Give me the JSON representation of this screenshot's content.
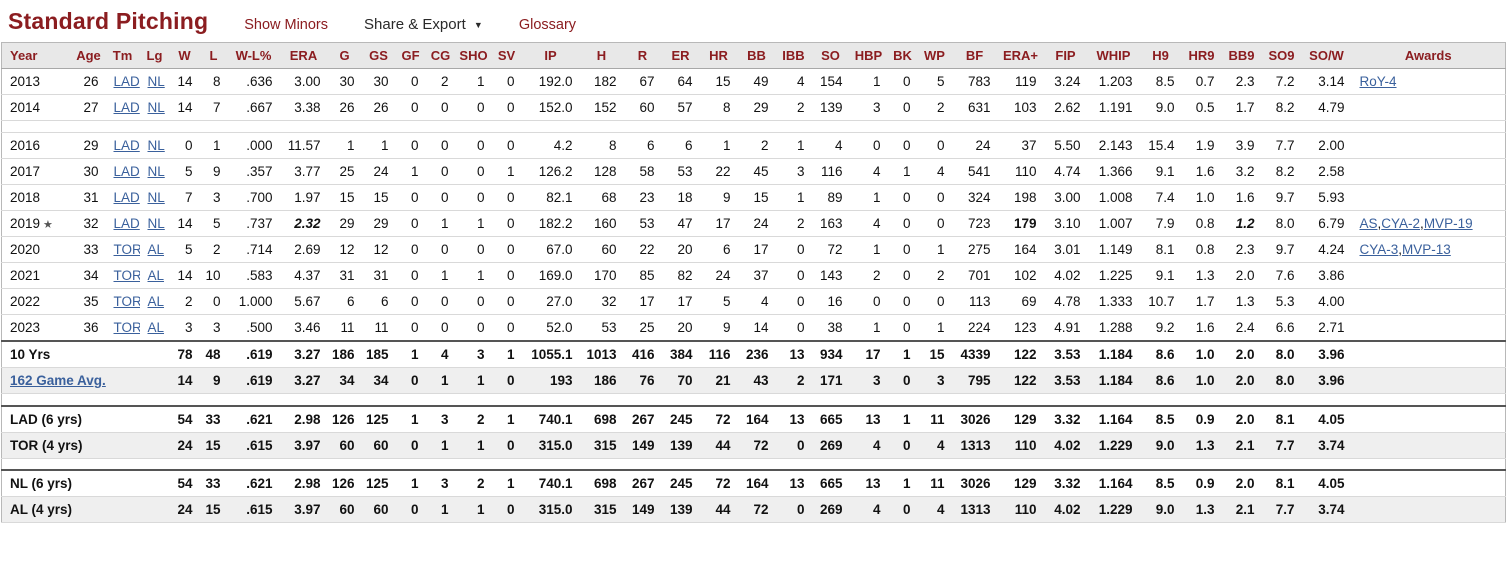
{
  "colors": {
    "title": "#8b1d20",
    "header_text": "#8b1d20",
    "link": "#3a609c",
    "toolbar_link": "#8b1d20",
    "header_bg": "#e8e8e8",
    "shaded_row_bg": "#efefef",
    "row_border": "#d9d9d9",
    "section_border": "#555555",
    "table_border": "#b8b8b8"
  },
  "page": {
    "title": "Standard Pitching",
    "toolbar": {
      "show_minors": "Show Minors",
      "share_export": "Share & Export",
      "dropdown_arrow": "▼",
      "glossary": "Glossary"
    }
  },
  "table": {
    "columns": [
      {
        "key": "year",
        "label": "Year"
      },
      {
        "key": "age",
        "label": "Age"
      },
      {
        "key": "tm",
        "label": "Tm"
      },
      {
        "key": "lg",
        "label": "Lg"
      },
      {
        "key": "w",
        "label": "W"
      },
      {
        "key": "l",
        "label": "L"
      },
      {
        "key": "wl_pct",
        "label": "W-L%"
      },
      {
        "key": "era",
        "label": "ERA"
      },
      {
        "key": "g",
        "label": "G"
      },
      {
        "key": "gs",
        "label": "GS"
      },
      {
        "key": "gf",
        "label": "GF"
      },
      {
        "key": "cg",
        "label": "CG"
      },
      {
        "key": "sho",
        "label": "SHO"
      },
      {
        "key": "sv",
        "label": "SV"
      },
      {
        "key": "ip",
        "label": "IP"
      },
      {
        "key": "h",
        "label": "H"
      },
      {
        "key": "r",
        "label": "R"
      },
      {
        "key": "er",
        "label": "ER"
      },
      {
        "key": "hr",
        "label": "HR"
      },
      {
        "key": "bb",
        "label": "BB"
      },
      {
        "key": "ibb",
        "label": "IBB"
      },
      {
        "key": "so",
        "label": "SO"
      },
      {
        "key": "hbp",
        "label": "HBP"
      },
      {
        "key": "bk",
        "label": "BK"
      },
      {
        "key": "wp",
        "label": "WP"
      },
      {
        "key": "bf",
        "label": "BF"
      },
      {
        "key": "era_plus",
        "label": "ERA+"
      },
      {
        "key": "fip",
        "label": "FIP"
      },
      {
        "key": "whip",
        "label": "WHIP"
      },
      {
        "key": "h9",
        "label": "H9"
      },
      {
        "key": "hr9",
        "label": "HR9"
      },
      {
        "key": "bb9",
        "label": "BB9"
      },
      {
        "key": "so9",
        "label": "SO9"
      },
      {
        "key": "so_w",
        "label": "SO/W"
      },
      {
        "key": "awards",
        "label": "Awards"
      }
    ],
    "stat_keys": [
      "w",
      "l",
      "wl_pct",
      "era",
      "g",
      "gs",
      "gf",
      "cg",
      "sho",
      "sv",
      "ip",
      "h",
      "r",
      "er",
      "hr",
      "bb",
      "ibb",
      "so",
      "hbp",
      "bk",
      "wp",
      "bf",
      "era_plus",
      "fip",
      "whip",
      "h9",
      "hr9",
      "bb9",
      "so9",
      "so_w"
    ],
    "rows": [
      {
        "type": "season",
        "year": "2013",
        "star": false,
        "age": "26",
        "team": "LAD",
        "league": "NL",
        "stats": [
          "14",
          "8",
          ".636",
          "3.00",
          "30",
          "30",
          "0",
          "2",
          "1",
          "0",
          "192.0",
          "182",
          "67",
          "64",
          "15",
          "49",
          "4",
          "154",
          "1",
          "0",
          "5",
          "783",
          "119",
          "3.24",
          "1.203",
          "8.5",
          "0.7",
          "2.3",
          "7.2",
          "3.14"
        ],
        "awards": [
          "RoY-4"
        ]
      },
      {
        "type": "season",
        "year": "2014",
        "star": false,
        "age": "27",
        "team": "LAD",
        "league": "NL",
        "stats": [
          "14",
          "7",
          ".667",
          "3.38",
          "26",
          "26",
          "0",
          "0",
          "0",
          "0",
          "152.0",
          "152",
          "60",
          "57",
          "8",
          "29",
          "2",
          "139",
          "3",
          "0",
          "2",
          "631",
          "103",
          "2.62",
          "1.191",
          "9.0",
          "0.5",
          "1.7",
          "8.2",
          "4.79"
        ],
        "awards": []
      },
      {
        "type": "spacer"
      },
      {
        "type": "season",
        "year": "2016",
        "star": false,
        "age": "29",
        "team": "LAD",
        "league": "NL",
        "stats": [
          "0",
          "1",
          ".000",
          "11.57",
          "1",
          "1",
          "0",
          "0",
          "0",
          "0",
          "4.2",
          "8",
          "6",
          "6",
          "1",
          "2",
          "1",
          "4",
          "0",
          "0",
          "0",
          "24",
          "37",
          "5.50",
          "2.143",
          "15.4",
          "1.9",
          "3.9",
          "7.7",
          "2.00"
        ],
        "awards": []
      },
      {
        "type": "season",
        "year": "2017",
        "star": false,
        "age": "30",
        "team": "LAD",
        "league": "NL",
        "stats": [
          "5",
          "9",
          ".357",
          "3.77",
          "25",
          "24",
          "1",
          "0",
          "0",
          "1",
          "126.2",
          "128",
          "58",
          "53",
          "22",
          "45",
          "3",
          "116",
          "4",
          "1",
          "4",
          "541",
          "110",
          "4.74",
          "1.366",
          "9.1",
          "1.6",
          "3.2",
          "8.2",
          "2.58"
        ],
        "awards": []
      },
      {
        "type": "season",
        "year": "2018",
        "star": false,
        "age": "31",
        "team": "LAD",
        "league": "NL",
        "stats": [
          "7",
          "3",
          ".700",
          "1.97",
          "15",
          "15",
          "0",
          "0",
          "0",
          "0",
          "82.1",
          "68",
          "23",
          "18",
          "9",
          "15",
          "1",
          "89",
          "1",
          "0",
          "0",
          "324",
          "198",
          "3.00",
          "1.008",
          "7.4",
          "1.0",
          "1.6",
          "9.7",
          "5.93"
        ],
        "awards": []
      },
      {
        "type": "season",
        "year": "2019",
        "star": true,
        "age": "32",
        "team": "LAD",
        "league": "NL",
        "stats": [
          "14",
          "5",
          ".737",
          "2.32",
          "29",
          "29",
          "0",
          "1",
          "1",
          "0",
          "182.2",
          "160",
          "53",
          "47",
          "17",
          "24",
          "2",
          "163",
          "4",
          "0",
          "0",
          "723",
          "179",
          "3.10",
          "1.007",
          "7.9",
          "0.8",
          "1.2",
          "8.0",
          "6.79"
        ],
        "highlights": {
          "era": "bold-italic",
          "era_plus": "bold",
          "bb9": "bold-italic"
        },
        "awards": [
          "AS",
          "CYA-2",
          "MVP-19"
        ]
      },
      {
        "type": "season",
        "year": "2020",
        "star": false,
        "age": "33",
        "team": "TOR",
        "league": "AL",
        "stats": [
          "5",
          "2",
          ".714",
          "2.69",
          "12",
          "12",
          "0",
          "0",
          "0",
          "0",
          "67.0",
          "60",
          "22",
          "20",
          "6",
          "17",
          "0",
          "72",
          "1",
          "0",
          "1",
          "275",
          "164",
          "3.01",
          "1.149",
          "8.1",
          "0.8",
          "2.3",
          "9.7",
          "4.24"
        ],
        "awards": [
          "CYA-3",
          "MVP-13"
        ]
      },
      {
        "type": "season",
        "year": "2021",
        "star": false,
        "age": "34",
        "team": "TOR",
        "league": "AL",
        "stats": [
          "14",
          "10",
          ".583",
          "4.37",
          "31",
          "31",
          "0",
          "1",
          "1",
          "0",
          "169.0",
          "170",
          "85",
          "82",
          "24",
          "37",
          "0",
          "143",
          "2",
          "0",
          "2",
          "701",
          "102",
          "4.02",
          "1.225",
          "9.1",
          "1.3",
          "2.0",
          "7.6",
          "3.86"
        ],
        "awards": []
      },
      {
        "type": "season",
        "year": "2022",
        "star": false,
        "age": "35",
        "team": "TOR",
        "league": "AL",
        "stats": [
          "2",
          "0",
          "1.000",
          "5.67",
          "6",
          "6",
          "0",
          "0",
          "0",
          "0",
          "27.0",
          "32",
          "17",
          "17",
          "5",
          "4",
          "0",
          "16",
          "0",
          "0",
          "0",
          "113",
          "69",
          "4.78",
          "1.333",
          "10.7",
          "1.7",
          "1.3",
          "5.3",
          "4.00"
        ],
        "awards": []
      },
      {
        "type": "season",
        "year": "2023",
        "star": false,
        "age": "36",
        "team": "TOR",
        "league": "AL",
        "stats": [
          "3",
          "3",
          ".500",
          "3.46",
          "11",
          "11",
          "0",
          "0",
          "0",
          "0",
          "52.0",
          "53",
          "25",
          "20",
          "9",
          "14",
          "0",
          "38",
          "1",
          "0",
          "1",
          "224",
          "123",
          "4.91",
          "1.288",
          "9.2",
          "1.6",
          "2.4",
          "6.6",
          "2.71"
        ],
        "awards": []
      },
      {
        "type": "total",
        "label": "10 Yrs",
        "label_link": false,
        "section_top": true,
        "shaded": false,
        "stats": [
          "78",
          "48",
          ".619",
          "3.27",
          "186",
          "185",
          "1",
          "4",
          "3",
          "1",
          "1055.1",
          "1013",
          "416",
          "384",
          "116",
          "236",
          "13",
          "934",
          "17",
          "1",
          "15",
          "4339",
          "122",
          "3.53",
          "1.184",
          "8.6",
          "1.0",
          "2.0",
          "8.0",
          "3.96"
        ],
        "awards": []
      },
      {
        "type": "total",
        "label": "162 Game Avg.",
        "label_link": true,
        "shaded": true,
        "stats": [
          "14",
          "9",
          ".619",
          "3.27",
          "34",
          "34",
          "0",
          "1",
          "1",
          "0",
          "193",
          "186",
          "76",
          "70",
          "21",
          "43",
          "2",
          "171",
          "3",
          "0",
          "3",
          "795",
          "122",
          "3.53",
          "1.184",
          "8.6",
          "1.0",
          "2.0",
          "8.0",
          "3.96"
        ],
        "awards": []
      },
      {
        "type": "spacer"
      },
      {
        "type": "total",
        "label": "LAD (6 yrs)",
        "label_link": false,
        "section_top": true,
        "stats": [
          "54",
          "33",
          ".621",
          "2.98",
          "126",
          "125",
          "1",
          "3",
          "2",
          "1",
          "740.1",
          "698",
          "267",
          "245",
          "72",
          "164",
          "13",
          "665",
          "13",
          "1",
          "11",
          "3026",
          "129",
          "3.32",
          "1.164",
          "8.5",
          "0.9",
          "2.0",
          "8.1",
          "4.05"
        ],
        "awards": []
      },
      {
        "type": "total",
        "label": "TOR (4 yrs)",
        "label_link": false,
        "shaded": true,
        "stats": [
          "24",
          "15",
          ".615",
          "3.97",
          "60",
          "60",
          "0",
          "1",
          "1",
          "0",
          "315.0",
          "315",
          "149",
          "139",
          "44",
          "72",
          "0",
          "269",
          "4",
          "0",
          "4",
          "1313",
          "110",
          "4.02",
          "1.229",
          "9.0",
          "1.3",
          "2.1",
          "7.7",
          "3.74"
        ],
        "awards": []
      },
      {
        "type": "spacer"
      },
      {
        "type": "total",
        "label": "NL (6 yrs)",
        "label_link": false,
        "section_top": true,
        "stats": [
          "54",
          "33",
          ".621",
          "2.98",
          "126",
          "125",
          "1",
          "3",
          "2",
          "1",
          "740.1",
          "698",
          "267",
          "245",
          "72",
          "164",
          "13",
          "665",
          "13",
          "1",
          "11",
          "3026",
          "129",
          "3.32",
          "1.164",
          "8.5",
          "0.9",
          "2.0",
          "8.1",
          "4.05"
        ],
        "awards": []
      },
      {
        "type": "total",
        "label": "AL (4 yrs)",
        "label_link": false,
        "shaded": true,
        "stats": [
          "24",
          "15",
          ".615",
          "3.97",
          "60",
          "60",
          "0",
          "1",
          "1",
          "0",
          "315.0",
          "315",
          "149",
          "139",
          "44",
          "72",
          "0",
          "269",
          "4",
          "0",
          "4",
          "1313",
          "110",
          "4.02",
          "1.229",
          "9.0",
          "1.3",
          "2.1",
          "7.7",
          "3.74"
        ],
        "awards": []
      }
    ]
  }
}
